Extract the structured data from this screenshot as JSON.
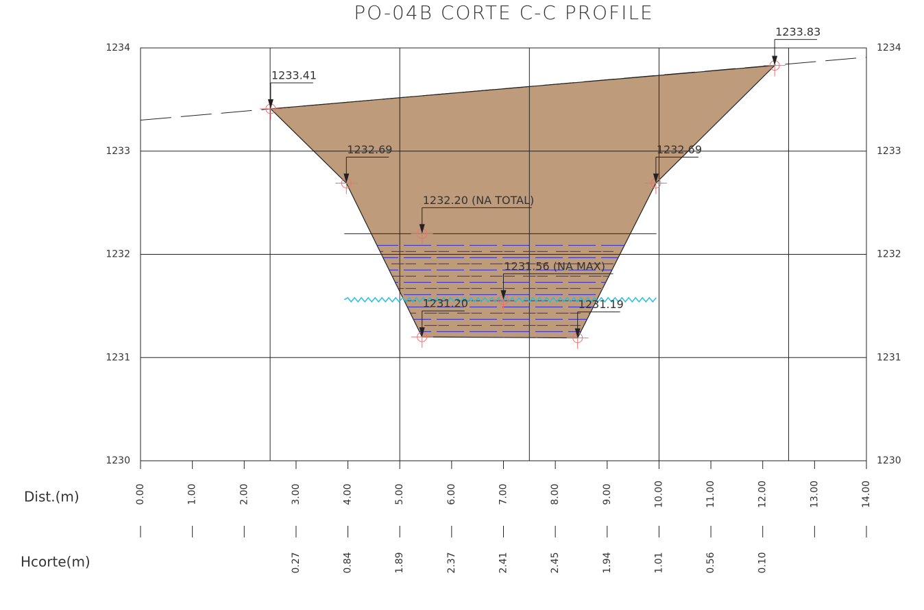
{
  "chart_data": {
    "type": "profile",
    "title": "PO-04B CORTE C-C PROFILE",
    "xlabel": "Dist.(m)",
    "xlim": [
      0,
      14
    ],
    "ylim": [
      1230,
      1234
    ],
    "xticks": [
      {
        "value": 0,
        "label": "0.00"
      },
      {
        "value": 1,
        "label": "1.00"
      },
      {
        "value": 2,
        "label": "2.00"
      },
      {
        "value": 3,
        "label": "3.00"
      },
      {
        "value": 4,
        "label": "4.00"
      },
      {
        "value": 5,
        "label": "5.00"
      },
      {
        "value": 6,
        "label": "6.00"
      },
      {
        "value": 7,
        "label": "7.00"
      },
      {
        "value": 8,
        "label": "8.00"
      },
      {
        "value": 9,
        "label": "9.00"
      },
      {
        "value": 10,
        "label": "10.00"
      },
      {
        "value": 11,
        "label": "11.00"
      },
      {
        "value": 12,
        "label": "12.00"
      },
      {
        "value": 13,
        "label": "13.00"
      },
      {
        "value": 14,
        "label": "14.00"
      }
    ],
    "yticks": [
      1230,
      1231,
      1232,
      1233,
      1234
    ],
    "xgrid": [
      2.5,
      5,
      7.5,
      10,
      12.5
    ],
    "ground": {
      "x": [
        0,
        14
      ],
      "y": [
        1233.3,
        1233.91
      ]
    },
    "section": {
      "color": "#bd9b7b",
      "x": [
        2.51,
        3.97,
        5.43,
        8.43,
        9.94,
        12.23
      ],
      "y": [
        1233.41,
        1232.69,
        1231.2,
        1231.19,
        1232.69,
        1233.83
      ],
      "value_labels": [
        "1233.41",
        "1232.69",
        "1231.20",
        "1231.19",
        "1232.69",
        "1233.83"
      ]
    },
    "water_levels": [
      {
        "value": 1232.2,
        "label": "1232.20 (NA TOTAL)",
        "marker_x": 5.43,
        "extent": [
          3.93,
          9.95
        ],
        "style": "line"
      },
      {
        "value": 1231.56,
        "label": "1231.56 (NA MAX)",
        "marker_x": 7.0,
        "extent": [
          3.93,
          9.95
        ],
        "style": "wave",
        "color": "#1fbfe6"
      }
    ],
    "hcorte": {
      "label": "Hcorte(m)",
      "x": [
        3,
        4,
        5,
        6,
        7,
        8,
        9,
        10,
        11,
        12
      ],
      "values": [
        0.27,
        0.84,
        1.89,
        2.37,
        2.41,
        2.45,
        1.94,
        1.01,
        0.56,
        0.1
      ],
      "value_labels": [
        "0.27",
        "0.84",
        "1.89",
        "2.37",
        "2.41",
        "2.45",
        "1.94",
        "1.01",
        "0.56",
        "0.10"
      ]
    }
  }
}
